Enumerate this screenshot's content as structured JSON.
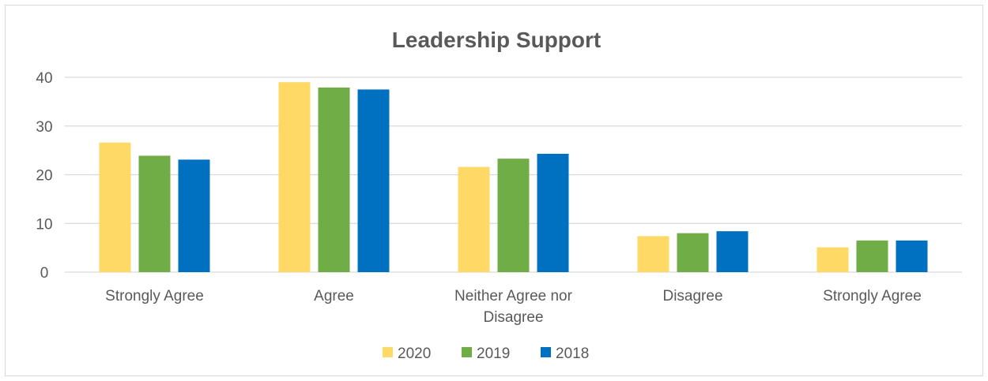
{
  "chart_data": {
    "type": "bar",
    "title": "Leadership Support",
    "categories": [
      [
        "Strongly Agree"
      ],
      [
        "Agree"
      ],
      [
        "Neither Agree nor",
        "Disagree"
      ],
      [
        "Disagree"
      ],
      [
        "Strongly Agree"
      ]
    ],
    "series": [
      {
        "name": "2020",
        "color": "#FFD966",
        "values": [
          26.6,
          39,
          21.6,
          7.4,
          5.1
        ]
      },
      {
        "name": "2019",
        "color": "#70AD47",
        "values": [
          23.9,
          37.9,
          23.3,
          8.0,
          6.5
        ]
      },
      {
        "name": "2018",
        "color": "#0070C0",
        "values": [
          23.1,
          37.5,
          24.3,
          8.4,
          6.5
        ]
      }
    ],
    "ylim": [
      0,
      40
    ],
    "yticks": [
      0,
      10,
      20,
      30,
      40
    ],
    "grid": true,
    "legend": "bottom"
  }
}
